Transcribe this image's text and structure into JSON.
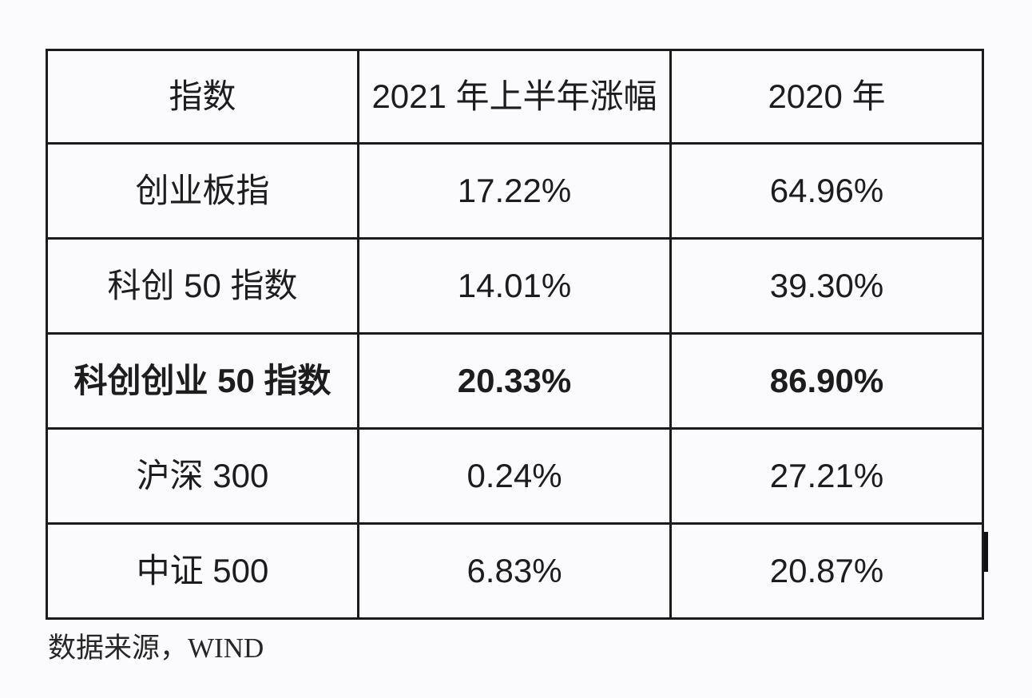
{
  "page": {
    "background": "#fbfafc",
    "text_color": "#1d1d1d",
    "border_color": "#1b1b1b"
  },
  "table": {
    "header": [
      "指数",
      "2021 年上半年涨幅",
      "2020 年"
    ],
    "rows": [
      [
        "创业板指",
        "17.22%",
        "64.96%"
      ],
      [
        "科创 50 指数",
        "14.01%",
        "39.30%"
      ],
      [
        "科创创业 50 指数",
        "20.33%",
        "86.90%"
      ],
      [
        "沪深 300",
        "0.24%",
        "27.21%"
      ],
      [
        "中证 500",
        "6.83%",
        "20.87%"
      ]
    ],
    "highlighted_row_index": 2
  },
  "footer": {
    "source_note": "数据来源，WIND"
  }
}
